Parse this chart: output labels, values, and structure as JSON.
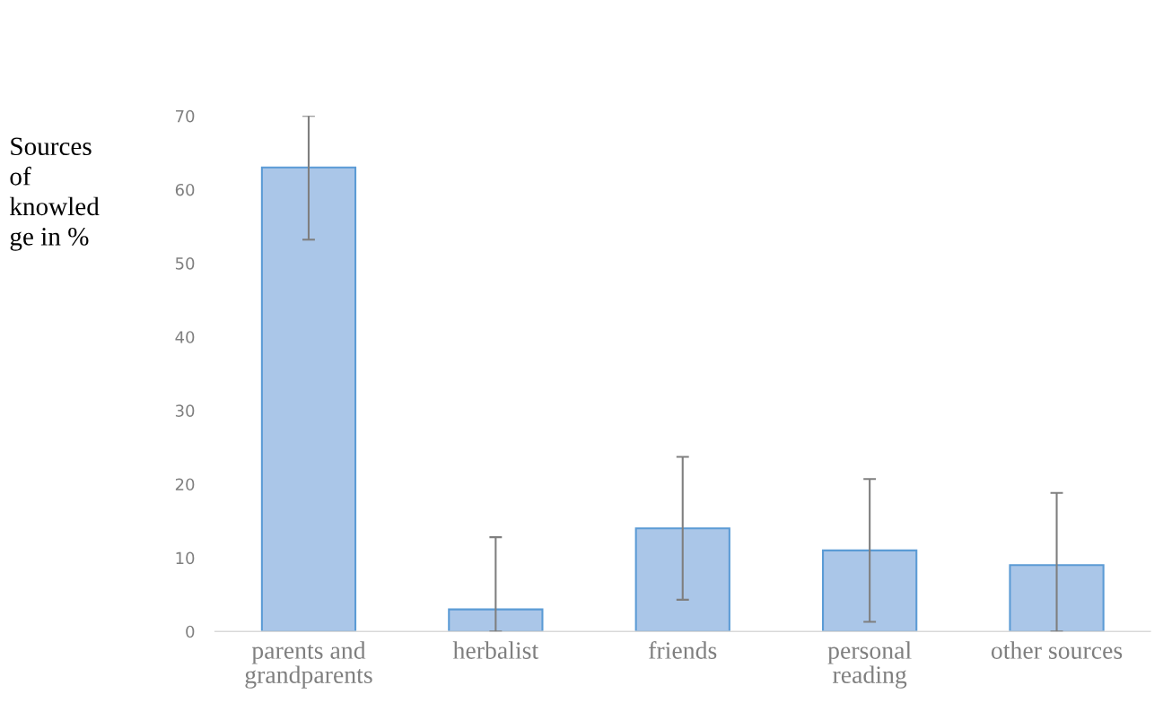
{
  "chart_data": {
    "type": "bar",
    "ylabel": "Sources\nof\nknowled\nge in %",
    "categories": [
      "parents and\ngrandparents",
      "herbalist",
      "friends",
      "personal\nreading",
      "other sources"
    ],
    "values": [
      63,
      3,
      14,
      11,
      9
    ],
    "errors": [
      [
        53.2,
        70
      ],
      [
        0,
        12.8
      ],
      [
        4.3,
        23.7
      ],
      [
        1.3,
        20.7
      ],
      [
        0,
        18.8
      ]
    ],
    "color": "#aac6e8",
    "ylim": [
      0,
      70
    ],
    "yticks": [
      0,
      10,
      20,
      30,
      40,
      50,
      60,
      70
    ],
    "grid": false
  }
}
